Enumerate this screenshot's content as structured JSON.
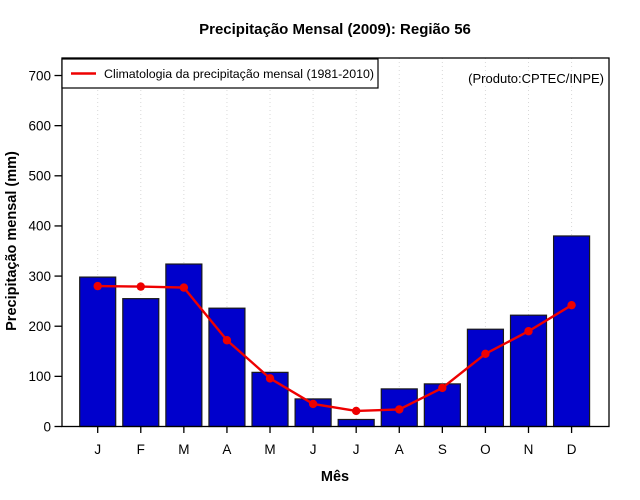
{
  "chart_data": {
    "type": "bar",
    "title": "Precipitação Mensal (2009): Região 56",
    "xlabel": "Mês",
    "ylabel": "Precipitação mensal (mm)",
    "annotation": "(Produto:CPTEC/INPE)",
    "categories": [
      "J",
      "F",
      "M",
      "A",
      "M",
      "J",
      "J",
      "A",
      "S",
      "O",
      "N",
      "D"
    ],
    "y_ticks": [
      0,
      100,
      200,
      300,
      400,
      500,
      600,
      700
    ],
    "ylim": [
      0,
      735
    ],
    "grid": "vertical-dotted",
    "legend_position": "top-left",
    "series": [
      {
        "name": "Precipitação mensal 2009",
        "type": "bar",
        "values": [
          298,
          255,
          324,
          236,
          108,
          55,
          14,
          75,
          85,
          194,
          222,
          380
        ]
      },
      {
        "name": "Climatologia da precipitação mensal (1981-2010)",
        "type": "line",
        "values": [
          280,
          279,
          277,
          172,
          96,
          45,
          31,
          34,
          77,
          145,
          190,
          242
        ]
      }
    ],
    "colors": {
      "bar": "#0000CC",
      "bar_border": "#1A1A1A",
      "line": "#EE0000",
      "grid": "#D8D8D8",
      "frame": "#000000",
      "annotation": "#909090"
    }
  }
}
